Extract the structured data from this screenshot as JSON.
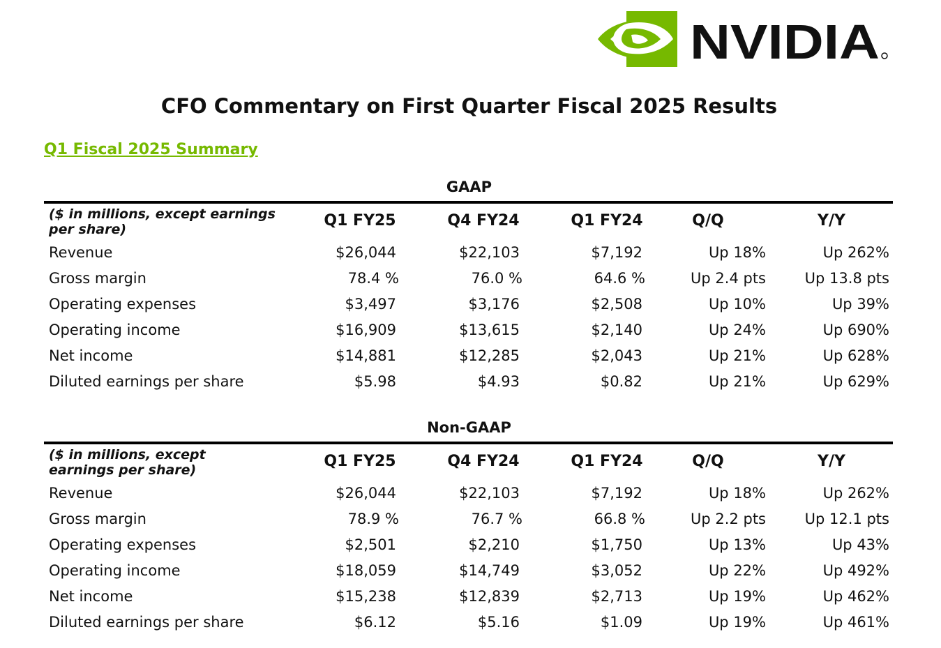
{
  "logo": {
    "text": "NVIDIA",
    "brand_color": "#76b900"
  },
  "title": "CFO Commentary on First Quarter Fiscal 2025 Results",
  "summary_link": "Q1 Fiscal 2025 Summary",
  "tables": [
    {
      "title": "GAAP",
      "caption": "($ in millions, except earnings per share)",
      "columns": [
        "Q1 FY25",
        "Q4 FY24",
        "Q1 FY24",
        "Q/Q",
        "Y/Y"
      ],
      "rows": [
        {
          "label": "Revenue",
          "values": [
            "$26,044",
            "$22,103",
            "$7,192",
            "Up 18%",
            "Up 262%"
          ]
        },
        {
          "label": "Gross margin",
          "values": [
            "78.4 %",
            "76.0 %",
            "64.6 %",
            "Up 2.4 pts",
            "Up 13.8 pts"
          ]
        },
        {
          "label": "Operating expenses",
          "values": [
            "$3,497",
            "$3,176",
            "$2,508",
            "Up 10%",
            "Up 39%"
          ]
        },
        {
          "label": "Operating income",
          "values": [
            "$16,909",
            "$13,615",
            "$2,140",
            "Up 24%",
            "Up 690%"
          ]
        },
        {
          "label": "Net income",
          "values": [
            "$14,881",
            "$12,285",
            "$2,043",
            "Up 21%",
            "Up 628%"
          ]
        },
        {
          "label": "Diluted earnings per share",
          "values": [
            "$5.98",
            "$4.93",
            "$0.82",
            "Up 21%",
            "Up 629%"
          ]
        }
      ]
    },
    {
      "title": "Non-GAAP",
      "caption": "($ in millions, except earnings per share)",
      "columns": [
        "Q1 FY25",
        "Q4 FY24",
        "Q1 FY24",
        "Q/Q",
        "Y/Y"
      ],
      "rows": [
        {
          "label": "Revenue",
          "values": [
            "$26,044",
            "$22,103",
            "$7,192",
            "Up 18%",
            "Up 262%"
          ]
        },
        {
          "label": "Gross margin",
          "values": [
            "78.9 %",
            "76.7 %",
            "66.8 %",
            "Up 2.2 pts",
            "Up 12.1 pts"
          ]
        },
        {
          "label": "Operating expenses",
          "values": [
            "$2,501",
            "$2,210",
            "$1,750",
            "Up 13%",
            "Up 43%"
          ]
        },
        {
          "label": "Operating income",
          "values": [
            "$18,059",
            "$14,749",
            "$3,052",
            "Up 22%",
            "Up 492%"
          ]
        },
        {
          "label": "Net income",
          "values": [
            "$15,238",
            "$12,839",
            "$2,713",
            "Up 19%",
            "Up 462%"
          ]
        },
        {
          "label": "Diluted earnings per share",
          "values": [
            "$6.12",
            "$5.16",
            "$1.09",
            "Up 19%",
            "Up 461%"
          ]
        }
      ]
    }
  ]
}
